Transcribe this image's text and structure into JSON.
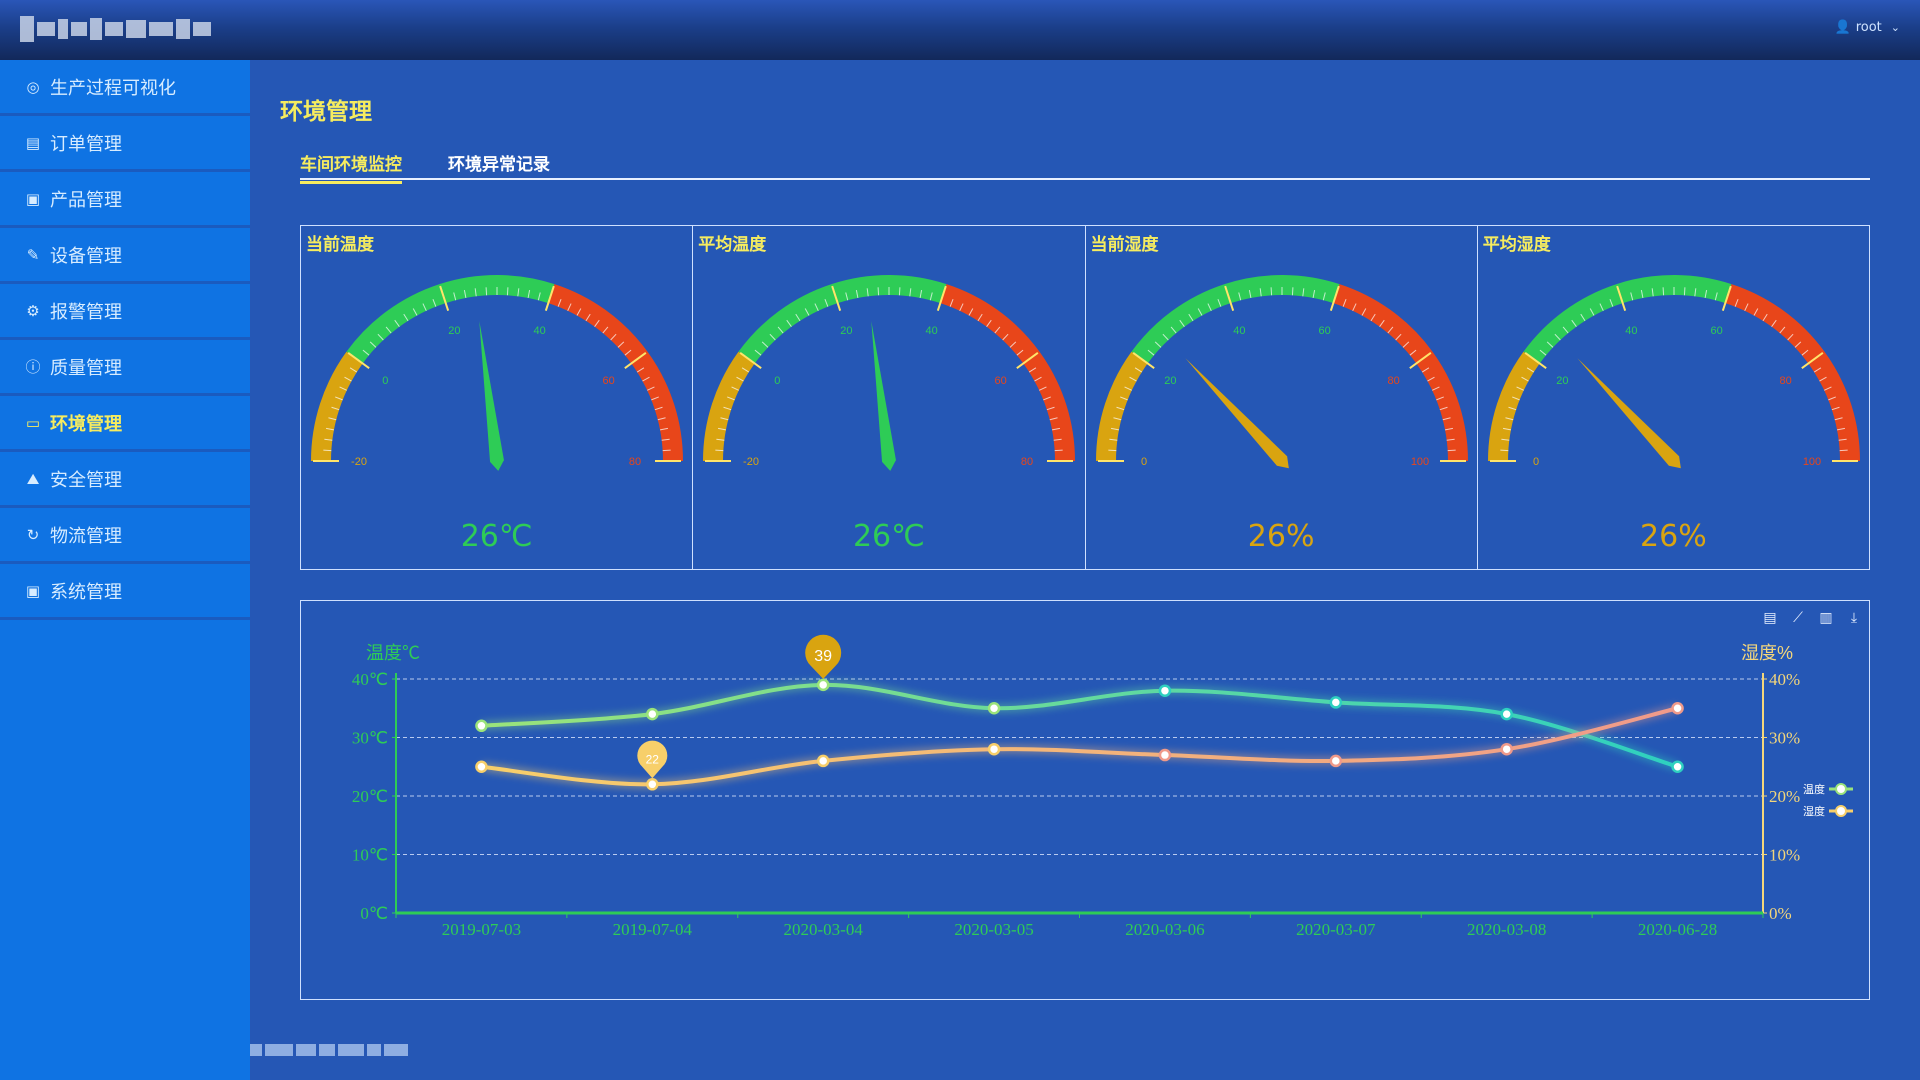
{
  "user": {
    "name": "root"
  },
  "sidebar": {
    "items": [
      {
        "label": "生产过程可视化",
        "icon": "eye-icon",
        "glyph": "◎"
      },
      {
        "label": "订单管理",
        "icon": "document-icon",
        "glyph": "▤"
      },
      {
        "label": "产品管理",
        "icon": "product-icon",
        "glyph": "▣"
      },
      {
        "label": "设备管理",
        "icon": "edit-icon",
        "glyph": "✎"
      },
      {
        "label": "报警管理",
        "icon": "chip-icon",
        "glyph": "⚙"
      },
      {
        "label": "质量管理",
        "icon": "info-icon",
        "glyph": "ⓘ"
      },
      {
        "label": "环境管理",
        "icon": "box-icon",
        "glyph": "▭"
      },
      {
        "label": "安全管理",
        "icon": "landscape-icon",
        "glyph": "⛰"
      },
      {
        "label": "物流管理",
        "icon": "refresh-icon",
        "glyph": "↻"
      },
      {
        "label": "系统管理",
        "icon": "settings-panel-icon",
        "glyph": "▣"
      }
    ],
    "active_index": 6
  },
  "page": {
    "title": "环境管理"
  },
  "tabs": [
    {
      "label": "车间环境监控",
      "active": true
    },
    {
      "label": "环境异常记录",
      "active": false
    }
  ],
  "gauges": [
    {
      "title": "当前温度",
      "min": -20,
      "max": 80,
      "value": 26,
      "ticks": [
        "-20",
        "0",
        "20",
        "40",
        "60",
        "80"
      ],
      "bands": [
        0.2,
        0.6
      ],
      "display": "26℃",
      "color": "#2ecc56"
    },
    {
      "title": "平均温度",
      "min": -20,
      "max": 80,
      "value": 26,
      "ticks": [
        "-20",
        "0",
        "20",
        "40",
        "60",
        "80"
      ],
      "bands": [
        0.2,
        0.6
      ],
      "display": "26℃",
      "color": "#2ecc56"
    },
    {
      "title": "当前湿度",
      "min": 0,
      "max": 100,
      "value": 26,
      "ticks": [
        "0",
        "20",
        "40",
        "60",
        "80",
        "100"
      ],
      "bands": [
        0.2,
        0.6
      ],
      "display": "26%",
      "color": "#d9a410"
    },
    {
      "title": "平均湿度",
      "min": 0,
      "max": 100,
      "value": 26,
      "ticks": [
        "0",
        "20",
        "40",
        "60",
        "80",
        "100"
      ],
      "bands": [
        0.2,
        0.6
      ],
      "display": "26%",
      "color": "#d9a410"
    }
  ],
  "gauge_colors": {
    "low": "#d9a410",
    "mid": "#2ecc56",
    "high": "#e8461a"
  },
  "toolbar_icons": [
    "data-view-icon",
    "line-chart-icon",
    "bar-chart-icon",
    "download-icon"
  ],
  "chart_data": {
    "type": "line",
    "categories": [
      "2019-07-03",
      "2019-07-04",
      "2020-03-04",
      "2020-03-05",
      "2020-03-06",
      "2020-03-07",
      "2020-03-08",
      "2020-06-28"
    ],
    "y_left": {
      "label": "温度℃",
      "min": 0,
      "max": 40,
      "ticks": [
        "0℃",
        "10℃",
        "20℃",
        "30℃",
        "40℃"
      ],
      "color": "#2ecc56"
    },
    "y_right": {
      "label": "湿度%",
      "min": 0,
      "max": 40,
      "ticks": [
        "0%",
        "10%",
        "20%",
        "30%",
        "40%"
      ],
      "color": "#f3d67b"
    },
    "series": [
      {
        "name": "温度",
        "axis": "left",
        "values": [
          32,
          34,
          39,
          35,
          38,
          36,
          34,
          25
        ],
        "color_start": "#9be37a",
        "color_end": "#2ed0c0",
        "max_label": "39",
        "max_color": "#d9a410"
      },
      {
        "name": "湿度",
        "axis": "right",
        "values": [
          25,
          22,
          26,
          28,
          27,
          26,
          28,
          35
        ],
        "color_start": "#f7cf6a",
        "color_end": "#f09a8a",
        "min_label": "22",
        "min_color": "#f7cf6a"
      }
    ],
    "grid": "dashed",
    "legend_position": "right"
  }
}
